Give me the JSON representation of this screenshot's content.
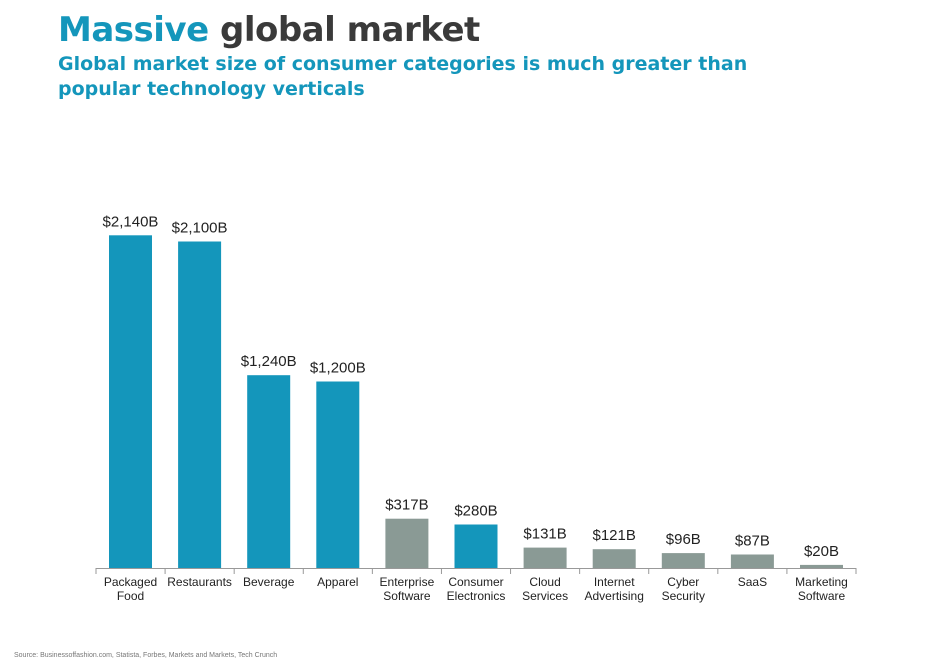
{
  "slide": {
    "title_accent": "Massive",
    "title_rest": " global market",
    "subtitle": "Global market size of consumer categories is much greater than popular technology verticals",
    "source": "Source: Businessoffashion.com, Statista, Forbes, Markets and Markets, Tech Crunch"
  },
  "colors": {
    "consumer": "#1496bb",
    "technology": "#8a9a95",
    "axis": "#999999",
    "label": "#222222"
  },
  "chart_data": {
    "type": "bar",
    "title": "",
    "xlabel": "",
    "ylabel": "",
    "ylim": [
      0,
      2200
    ],
    "grid": false,
    "legend": "none",
    "categories": [
      [
        "Packaged",
        "Food"
      ],
      [
        "Restaurants"
      ],
      [
        "Beverage"
      ],
      [
        "Apparel"
      ],
      [
        "Enterprise",
        "Software"
      ],
      [
        "Consumer",
        "Electronics"
      ],
      [
        "Cloud",
        "Services"
      ],
      [
        "Internet",
        "Advertising"
      ],
      [
        "Cyber",
        "Security"
      ],
      [
        "SaaS"
      ],
      [
        "Marketing",
        "Software"
      ]
    ],
    "values": [
      2140,
      2100,
      1240,
      1200,
      317,
      280,
      131,
      121,
      96,
      87,
      20
    ],
    "value_labels": [
      "$2,140B",
      "$2,100B",
      "$1,240B",
      "$1,200B",
      "$317B",
      "$280B",
      "$131B",
      "$121B",
      "$96B",
      "$87B",
      "$20B"
    ],
    "bar_group": [
      "consumer",
      "consumer",
      "consumer",
      "consumer",
      "technology",
      "consumer",
      "technology",
      "technology",
      "technology",
      "technology",
      "technology"
    ]
  }
}
